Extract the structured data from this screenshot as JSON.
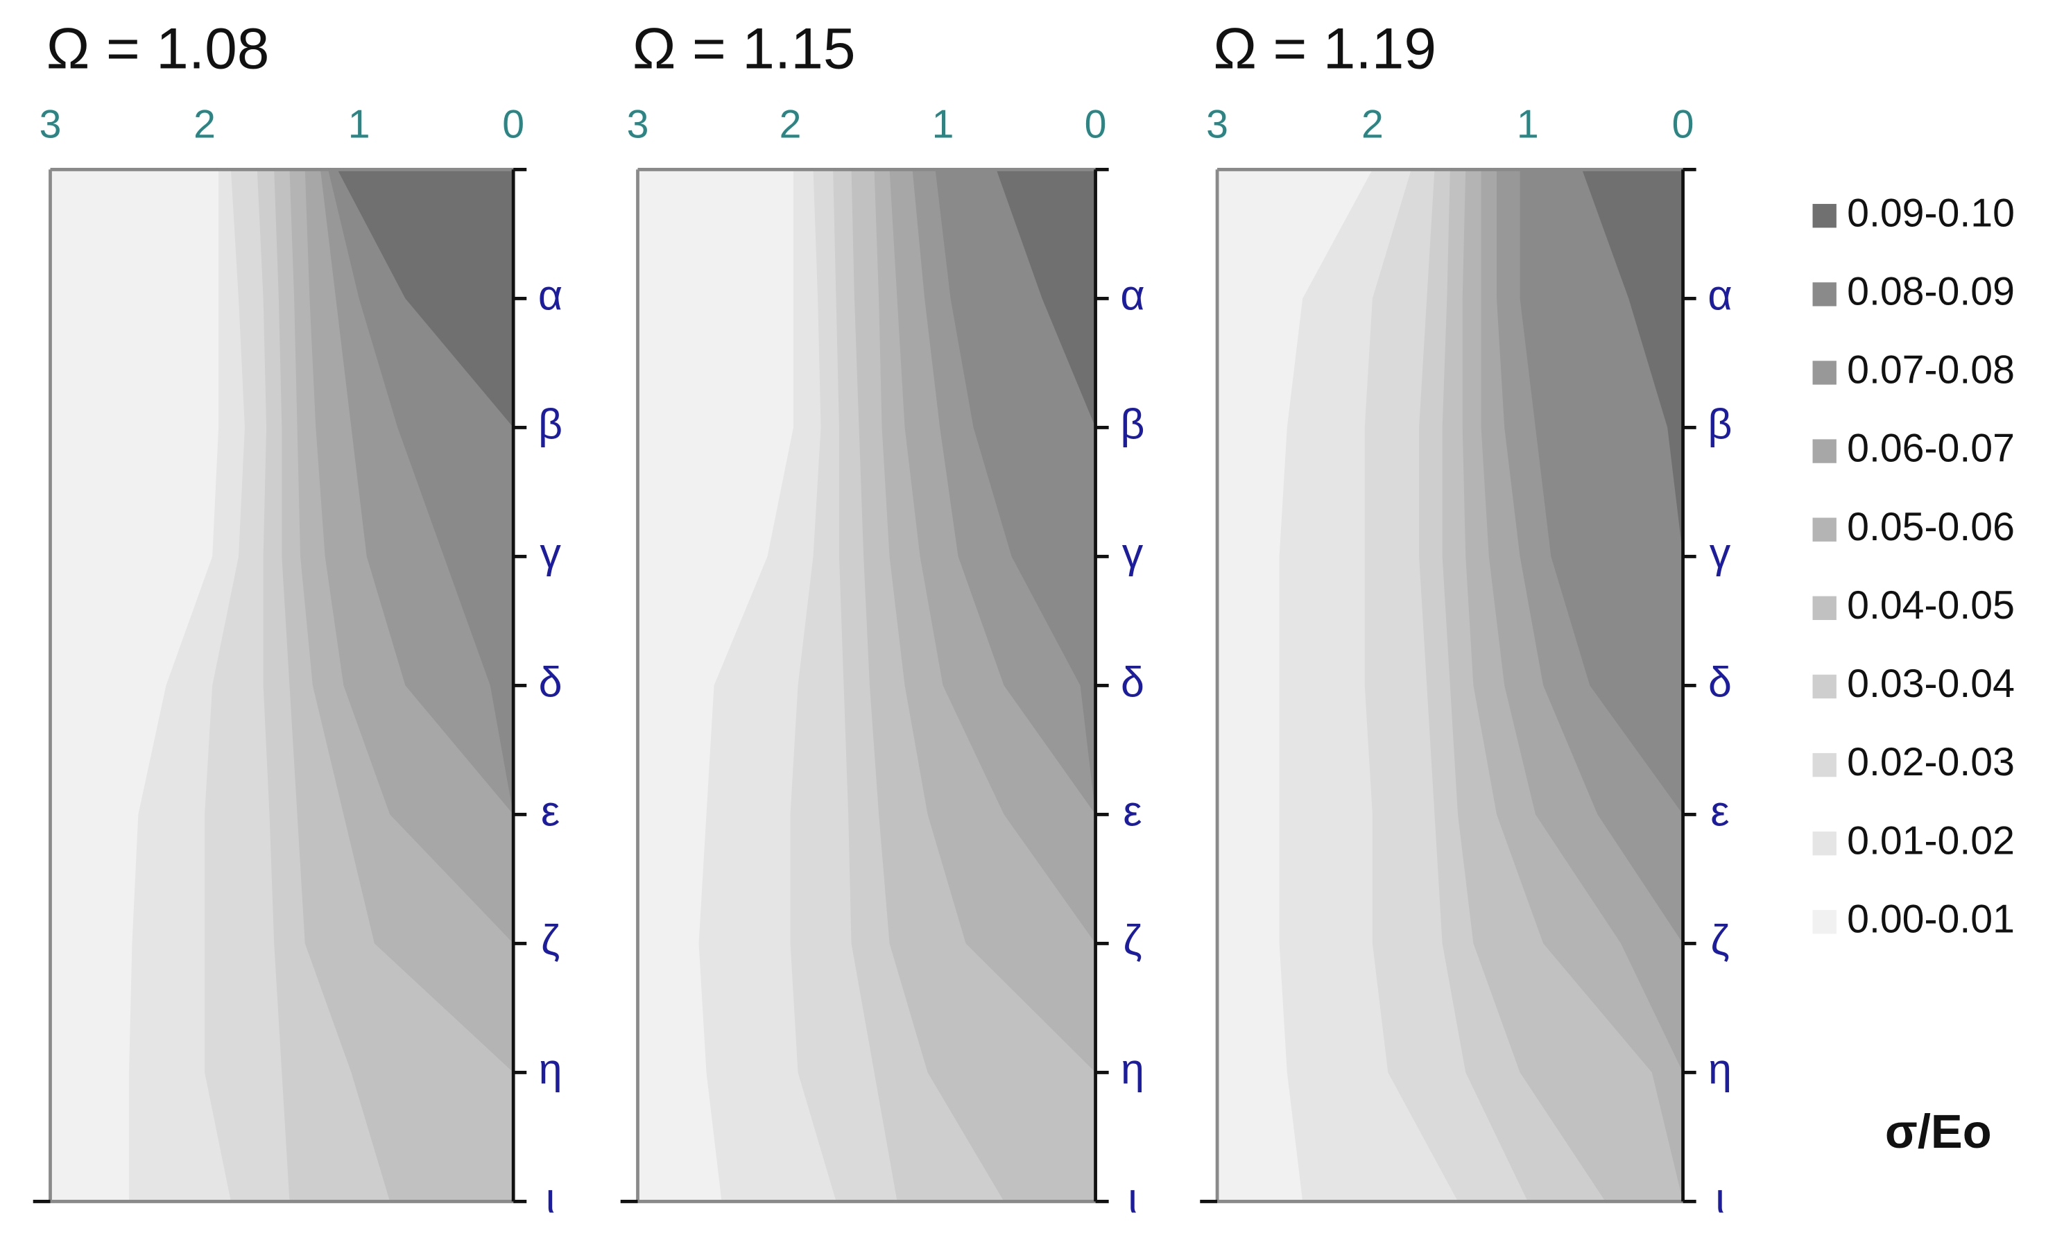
{
  "chart_data": {
    "type": "contour",
    "xlim": [
      3,
      0
    ],
    "xticks": [
      3,
      2,
      1,
      0
    ],
    "y_categories": [
      null,
      "α",
      "β",
      "γ",
      "δ",
      "ε",
      "ζ",
      "η",
      "ι"
    ],
    "levels": [
      {
        "label": "0.00-0.01",
        "color": "#f1f1f1"
      },
      {
        "label": "0.01-0.02",
        "color": "#e5e5e5"
      },
      {
        "label": "0.02-0.03",
        "color": "#dadada"
      },
      {
        "label": "0.03-0.04",
        "color": "#cecece"
      },
      {
        "label": "0.04-0.05",
        "color": "#c1c1c1"
      },
      {
        "label": "0.05-0.06",
        "color": "#b4b4b4"
      },
      {
        "label": "0.06-0.07",
        "color": "#a7a7a7"
      },
      {
        "label": "0.07-0.08",
        "color": "#989898"
      },
      {
        "label": "0.08-0.09",
        "color": "#8a8a8a"
      },
      {
        "label": "0.09-0.10",
        "color": "#707070"
      }
    ],
    "legend_title": "σ/Eo",
    "panels": [
      {
        "title": "Ω = 1.08",
        "boundaries": [
          [
            1.91,
            1.91,
            1.91,
            1.95,
            2.25,
            2.43,
            2.47,
            2.49,
            2.49
          ],
          [
            1.83,
            1.78,
            1.74,
            1.78,
            1.95,
            2.0,
            2.0,
            2.0,
            1.83
          ],
          [
            1.66,
            1.62,
            1.6,
            1.62,
            1.62,
            1.58,
            1.55,
            1.5,
            1.45
          ],
          [
            1.55,
            1.52,
            1.5,
            1.5,
            1.45,
            1.4,
            1.35,
            1.05,
            0.8
          ],
          [
            1.45,
            1.42,
            1.4,
            1.38,
            1.3,
            1.1,
            0.9,
            0,
            0
          ],
          [
            1.35,
            1.32,
            1.28,
            1.22,
            1.1,
            0.8,
            0,
            0,
            0
          ],
          [
            1.25,
            1.15,
            1.05,
            0.95,
            0.7,
            0,
            0,
            0,
            0
          ],
          [
            1.2,
            1.0,
            0.75,
            0.45,
            0.15,
            0,
            0,
            0,
            0
          ],
          [
            1.14,
            0.7,
            0,
            0,
            0,
            0,
            0,
            0,
            0
          ]
        ]
      },
      {
        "title": "Ω = 1.15",
        "boundaries": [
          [
            1.98,
            1.98,
            1.98,
            2.15,
            2.5,
            2.55,
            2.6,
            2.55,
            2.45
          ],
          [
            1.85,
            1.82,
            1.8,
            1.85,
            1.95,
            2.0,
            2.0,
            1.95,
            1.7
          ],
          [
            1.72,
            1.7,
            1.68,
            1.68,
            1.65,
            1.62,
            1.6,
            1.45,
            1.3
          ],
          [
            1.6,
            1.58,
            1.55,
            1.52,
            1.48,
            1.42,
            1.35,
            1.1,
            0.6
          ],
          [
            1.45,
            1.42,
            1.4,
            1.35,
            1.25,
            1.1,
            0.85,
            0,
            0
          ],
          [
            1.35,
            1.3,
            1.25,
            1.15,
            1.0,
            0.6,
            0,
            0,
            0
          ],
          [
            1.2,
            1.12,
            1.02,
            0.9,
            0.6,
            0,
            0,
            0,
            0
          ],
          [
            1.05,
            0.95,
            0.8,
            0.55,
            0.1,
            0,
            0,
            0,
            0
          ],
          [
            0.65,
            0.35,
            0,
            0,
            0,
            0,
            0,
            0,
            0
          ]
        ]
      },
      {
        "title": "Ω = 1.19",
        "boundaries": [
          [
            2.0,
            2.45,
            2.55,
            2.6,
            2.6,
            2.6,
            2.6,
            2.55,
            2.45
          ],
          [
            1.75,
            2.0,
            2.05,
            2.05,
            2.05,
            2.0,
            2.0,
            1.9,
            1.45
          ],
          [
            1.6,
            1.65,
            1.7,
            1.7,
            1.65,
            1.6,
            1.55,
            1.4,
            1.0
          ],
          [
            1.5,
            1.52,
            1.55,
            1.55,
            1.5,
            1.45,
            1.35,
            1.05,
            0.5
          ],
          [
            1.4,
            1.42,
            1.42,
            1.4,
            1.35,
            1.2,
            0.9,
            0.2,
            0
          ],
          [
            1.3,
            1.3,
            1.3,
            1.25,
            1.15,
            0.95,
            0.4,
            0,
            0
          ],
          [
            1.2,
            1.2,
            1.15,
            1.05,
            0.9,
            0.55,
            0,
            0,
            0
          ],
          [
            1.05,
            1.05,
            0.95,
            0.85,
            0.6,
            0,
            0,
            0,
            0
          ],
          [
            0.65,
            0.35,
            0.1,
            0,
            0,
            0,
            0,
            0,
            0
          ]
        ]
      }
    ]
  }
}
